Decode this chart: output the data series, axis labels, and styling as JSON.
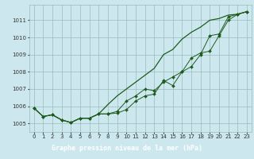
{
  "background_color": "#cce8ee",
  "plot_bg_color": "#cce8ee",
  "grid_color": "#99bbbb",
  "line_color": "#1e5c1e",
  "title": "Graphe pression niveau de la mer (hPa)",
  "title_bg": "#2d6a2d",
  "title_fg": "#ffffff",
  "xlim": [
    -0.5,
    23.5
  ],
  "ylim": [
    1004.5,
    1011.9
  ],
  "yticks": [
    1005,
    1006,
    1007,
    1008,
    1009,
    1010,
    1011
  ],
  "xticks": [
    0,
    1,
    2,
    3,
    4,
    5,
    6,
    7,
    8,
    9,
    10,
    11,
    12,
    13,
    14,
    15,
    16,
    17,
    18,
    19,
    20,
    21,
    22,
    23
  ],
  "line1_x": [
    0,
    1,
    2,
    3,
    4,
    5,
    6,
    7,
    8,
    9,
    10,
    11,
    12,
    13,
    14,
    15,
    16,
    17,
    18,
    19,
    20,
    21,
    22,
    23
  ],
  "line1_y": [
    1005.9,
    1005.4,
    1005.5,
    1005.2,
    1005.05,
    1005.3,
    1005.3,
    1005.55,
    1005.55,
    1005.6,
    1005.8,
    1006.3,
    1006.6,
    1006.7,
    1007.5,
    1007.2,
    1008.0,
    1008.3,
    1009.0,
    1010.1,
    1010.2,
    1011.2,
    1011.35,
    1011.5
  ],
  "line2_x": [
    0,
    1,
    2,
    3,
    4,
    5,
    6,
    7,
    8,
    9,
    10,
    11,
    12,
    13,
    14,
    15,
    16,
    17,
    18,
    19,
    20,
    21,
    22,
    23
  ],
  "line2_y": [
    1005.9,
    1005.4,
    1005.5,
    1005.2,
    1005.05,
    1005.3,
    1005.3,
    1005.55,
    1006.1,
    1006.6,
    1007.0,
    1007.4,
    1007.8,
    1008.2,
    1009.0,
    1009.3,
    1009.9,
    1010.3,
    1010.6,
    1011.0,
    1011.1,
    1011.3,
    1011.35,
    1011.5
  ],
  "line3_x": [
    0,
    1,
    2,
    3,
    4,
    5,
    6,
    7,
    8,
    9,
    10,
    11,
    12,
    13,
    14,
    15,
    16,
    17,
    18,
    19,
    20,
    21,
    22,
    23
  ],
  "line3_y": [
    1005.9,
    1005.4,
    1005.5,
    1005.2,
    1005.05,
    1005.3,
    1005.3,
    1005.55,
    1005.55,
    1005.7,
    1006.3,
    1006.6,
    1007.0,
    1006.9,
    1007.4,
    1007.7,
    1008.0,
    1008.8,
    1009.1,
    1009.2,
    1010.1,
    1011.0,
    1011.35,
    1011.5
  ],
  "title_fontsize": 6.0,
  "tick_fontsize": 5.0
}
